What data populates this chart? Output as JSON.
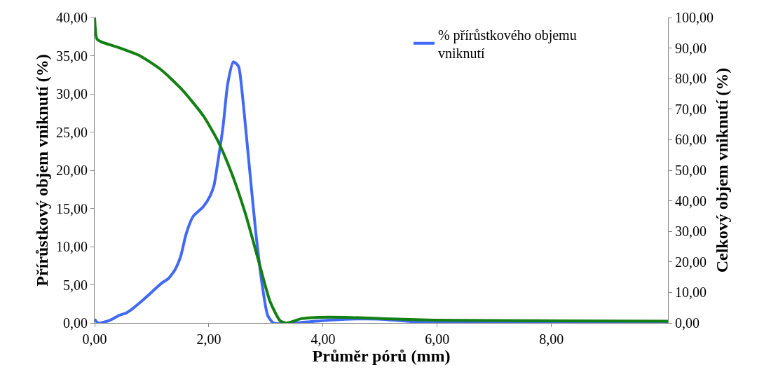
{
  "chart_data": {
    "type": "line",
    "xlabel": "Průměr pórů (mm)",
    "ylabel": "Přírůstkový objem vniknutí (%)",
    "y2label": "Celkový objem vniknutí (%)",
    "xlim": [
      0,
      10.04
    ],
    "xticks": [
      {
        "value": 0,
        "label": "0,00"
      },
      {
        "value": 2,
        "label": "2,00"
      },
      {
        "value": 4,
        "label": "4,00"
      },
      {
        "value": 6,
        "label": "6,00"
      },
      {
        "value": 8,
        "label": "8,00"
      }
    ],
    "ylim": [
      0,
      40
    ],
    "yticks": [
      {
        "value": 0,
        "label": "0,00"
      },
      {
        "value": 5,
        "label": "5,00"
      },
      {
        "value": 10,
        "label": "10,00"
      },
      {
        "value": 15,
        "label": "15,00"
      },
      {
        "value": 20,
        "label": "20,00"
      },
      {
        "value": 25,
        "label": "25,00"
      },
      {
        "value": 30,
        "label": "30,00"
      },
      {
        "value": 35,
        "label": "35,00"
      },
      {
        "value": 40,
        "label": "40,00"
      }
    ],
    "y2lim": [
      0,
      100
    ],
    "y2ticks": [
      {
        "value": 0,
        "label": "0,00"
      },
      {
        "value": 10,
        "label": "10,00"
      },
      {
        "value": 20,
        "label": "20,00"
      },
      {
        "value": 30,
        "label": "30,00"
      },
      {
        "value": 40,
        "label": "40,00"
      },
      {
        "value": 50,
        "label": "50,00"
      },
      {
        "value": 60,
        "label": "60,00"
      },
      {
        "value": 70,
        "label": "70,00"
      },
      {
        "value": 80,
        "label": "80,00"
      },
      {
        "value": 90,
        "label": "90,00"
      },
      {
        "value": 100,
        "label": "100,00"
      }
    ],
    "legend": "top right",
    "marker": "none",
    "line_style": "solid",
    "series": [
      {
        "name": "% přírůstkového objemu vniknutí",
        "color": "#4169f5",
        "x": [
          0,
          0.06,
          0.25,
          0.31,
          0.43,
          0.55,
          0.67,
          0.8,
          0.98,
          1.17,
          1.29,
          1.41,
          1.51,
          1.6,
          1.72,
          1.9,
          2.02,
          2.09,
          2.15,
          2.25,
          2.33,
          2.43,
          2.52,
          2.58,
          2.7,
          2.82,
          2.94,
          3.03,
          3.13,
          3.5,
          3.99,
          4.48,
          4.97,
          5.71,
          6.93,
          8.16,
          10.04
        ],
        "values": [
          0.5,
          0,
          0.3,
          0.5,
          1.0,
          1.3,
          1.9,
          2.7,
          3.9,
          5.2,
          5.8,
          7.0,
          8.8,
          11.6,
          13.9,
          15.2,
          16.6,
          18,
          20.7,
          25.8,
          31.3,
          34.2,
          33.6,
          30.4,
          21.2,
          12.0,
          4.7,
          1.0,
          0,
          0,
          0.3,
          0.5,
          0.5,
          0.1,
          0,
          0.1,
          0
        ]
      },
      {
        "axis": "y2",
        "color": "#138013",
        "x": [
          0,
          0.04,
          0.12,
          0.43,
          0.8,
          1.17,
          1.53,
          1.9,
          2.15,
          2.39,
          2.64,
          2.88,
          3.07,
          3.25,
          3.37,
          3.62,
          3.87,
          4.48,
          5.09,
          5.95,
          6.93,
          8.16,
          10.04
        ],
        "values": [
          100,
          93,
          92,
          90.1,
          87.4,
          82.8,
          76.4,
          67.9,
          59.9,
          49.5,
          35.8,
          19.7,
          7.1,
          0.7,
          0,
          1.4,
          1.8,
          1.8,
          1.4,
          0.9,
          0.8,
          0.7,
          0.6
        ]
      }
    ]
  }
}
